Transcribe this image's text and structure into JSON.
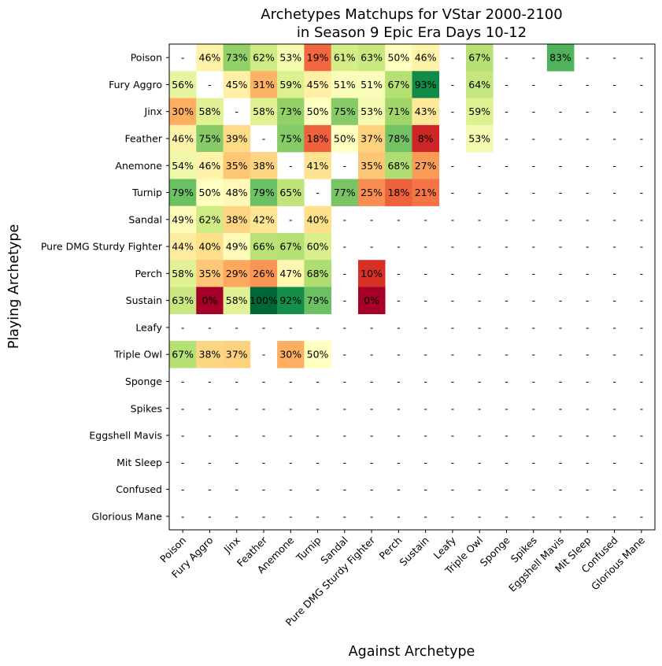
{
  "chart_data": {
    "type": "heatmap",
    "title": "Archetypes Matchups for VStar 2000-2100\nin Season 9 Epic Era Days 10-12",
    "xlabel": "Against Archetype",
    "ylabel": "Playing Archetype",
    "colormap": "RdYlGn",
    "vmin": 0,
    "vmax": 100,
    "missing_label": "-",
    "rows": [
      "Poison",
      "Fury Aggro",
      "Jinx",
      "Feather",
      "Anemone",
      "Turnip",
      "Sandal",
      "Pure DMG Sturdy Fighter",
      "Perch",
      "Sustain",
      "Leafy",
      "Triple Owl",
      "Sponge",
      "Spikes",
      "Eggshell Mavis",
      "Mit Sleep",
      "Confused",
      "Glorious Mane"
    ],
    "columns": [
      "Poison",
      "Fury Aggro",
      "Jinx",
      "Feather",
      "Anemone",
      "Turnip",
      "Sandal",
      "Pure DMG Sturdy Fighter",
      "Perch",
      "Sustain",
      "Leafy",
      "Triple Owl",
      "Sponge",
      "Spikes",
      "Eggshell Mavis",
      "Mit Sleep",
      "Confused",
      "Glorious Mane"
    ],
    "values": [
      [
        null,
        46,
        73,
        62,
        53,
        19,
        61,
        63,
        50,
        46,
        null,
        67,
        null,
        null,
        83,
        null,
        null,
        null
      ],
      [
        56,
        null,
        45,
        31,
        59,
        45,
        51,
        51,
        67,
        93,
        null,
        64,
        null,
        null,
        null,
        null,
        null,
        null
      ],
      [
        30,
        58,
        null,
        58,
        73,
        50,
        75,
        53,
        71,
        43,
        null,
        59,
        null,
        null,
        null,
        null,
        null,
        null
      ],
      [
        46,
        75,
        39,
        null,
        75,
        18,
        50,
        37,
        78,
        8,
        null,
        53,
        null,
        null,
        null,
        null,
        null,
        null
      ],
      [
        54,
        46,
        35,
        38,
        null,
        41,
        null,
        35,
        68,
        27,
        null,
        null,
        null,
        null,
        null,
        null,
        null,
        null
      ],
      [
        79,
        50,
        48,
        79,
        65,
        null,
        77,
        25,
        18,
        21,
        null,
        null,
        null,
        null,
        null,
        null,
        null,
        null
      ],
      [
        49,
        62,
        38,
        42,
        null,
        40,
        null,
        null,
        null,
        null,
        null,
        null,
        null,
        null,
        null,
        null,
        null,
        null
      ],
      [
        44,
        40,
        49,
        66,
        67,
        60,
        null,
        null,
        null,
        null,
        null,
        null,
        null,
        null,
        null,
        null,
        null,
        null
      ],
      [
        58,
        35,
        29,
        26,
        47,
        68,
        null,
        10,
        null,
        null,
        null,
        null,
        null,
        null,
        null,
        null,
        null,
        null
      ],
      [
        63,
        0,
        58,
        100,
        92,
        79,
        null,
        0,
        null,
        null,
        null,
        null,
        null,
        null,
        null,
        null,
        null,
        null
      ],
      [
        null,
        null,
        null,
        null,
        null,
        null,
        null,
        null,
        null,
        null,
        null,
        null,
        null,
        null,
        null,
        null,
        null,
        null
      ],
      [
        67,
        38,
        37,
        null,
        30,
        50,
        null,
        null,
        null,
        null,
        null,
        null,
        null,
        null,
        null,
        null,
        null,
        null
      ],
      [
        null,
        null,
        null,
        null,
        null,
        null,
        null,
        null,
        null,
        null,
        null,
        null,
        null,
        null,
        null,
        null,
        null,
        null
      ],
      [
        null,
        null,
        null,
        null,
        null,
        null,
        null,
        null,
        null,
        null,
        null,
        null,
        null,
        null,
        null,
        null,
        null,
        null
      ],
      [
        null,
        null,
        null,
        null,
        null,
        null,
        null,
        null,
        null,
        null,
        null,
        null,
        null,
        null,
        null,
        null,
        null,
        null
      ],
      [
        null,
        null,
        null,
        null,
        null,
        null,
        null,
        null,
        null,
        null,
        null,
        null,
        null,
        null,
        null,
        null,
        null,
        null
      ],
      [
        null,
        null,
        null,
        null,
        null,
        null,
        null,
        null,
        null,
        null,
        null,
        null,
        null,
        null,
        null,
        null,
        null,
        null
      ],
      [
        null,
        null,
        null,
        null,
        null,
        null,
        null,
        null,
        null,
        null,
        null,
        null,
        null,
        null,
        null,
        null,
        null,
        null
      ]
    ]
  }
}
